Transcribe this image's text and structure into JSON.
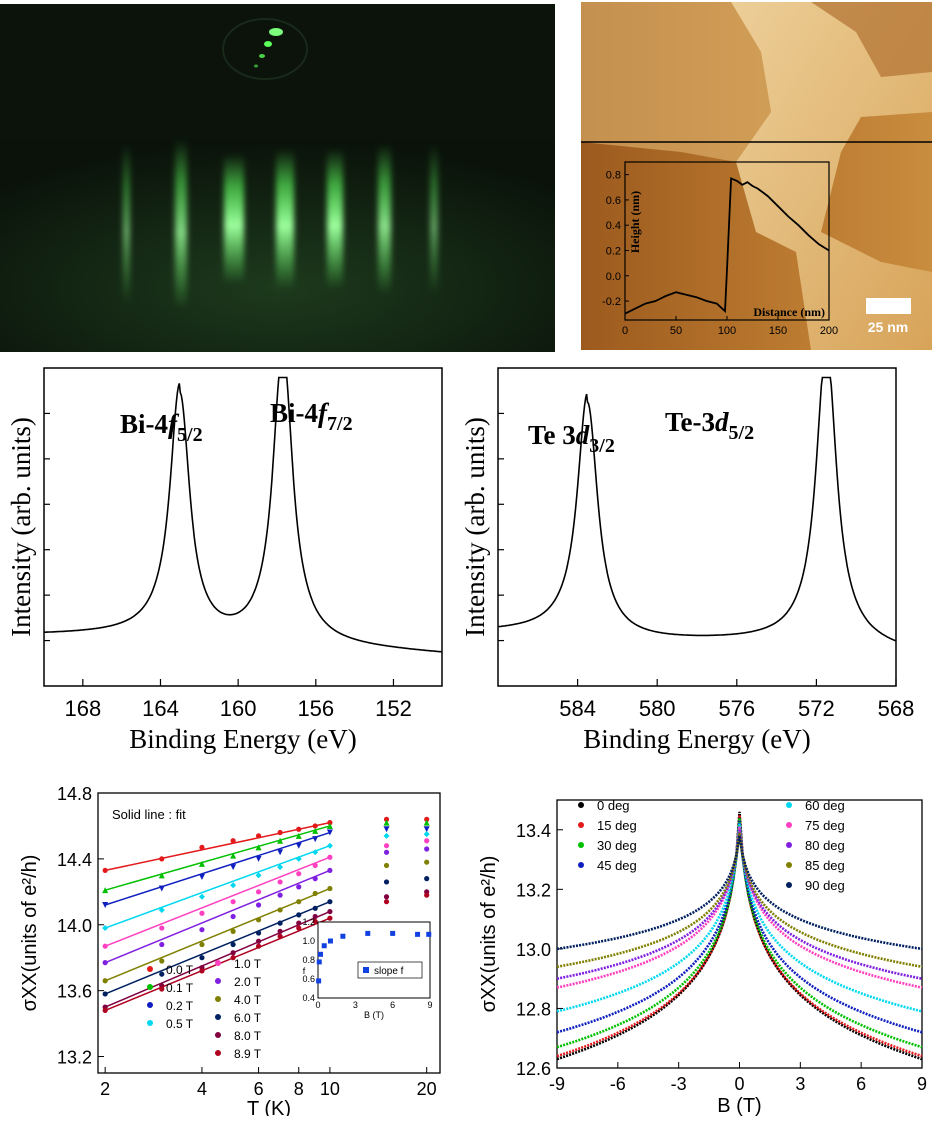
{
  "colors": {
    "rheed_bg": "#0c140c",
    "rheed_green": "#5dff5d",
    "afm_dark": "#8a4a14",
    "afm_light": "#e8c88a",
    "black": "#000000"
  },
  "afm": {
    "scale_bar_label": "25 nm",
    "inset": {
      "xlabel": "Distance (nm)",
      "ylabel": "Height (nm)",
      "x_ticks": [
        "0",
        "50",
        "100",
        "150",
        "200"
      ],
      "y_ticks": [
        "-0.2",
        "0.0",
        "0.2",
        "0.4",
        "0.6",
        "0.8"
      ]
    }
  },
  "chart_data": [
    {
      "id": "afm-profile",
      "type": "line",
      "xlabel": "Distance (nm)",
      "ylabel": "Height (nm)",
      "xlim": [
        0,
        200
      ],
      "ylim": [
        -0.35,
        0.9
      ],
      "x": [
        0,
        10,
        20,
        30,
        40,
        50,
        60,
        70,
        80,
        90,
        98,
        100,
        104,
        110,
        115,
        120,
        125,
        130,
        140,
        150,
        160,
        170,
        180,
        190,
        200
      ],
      "y": [
        -0.3,
        -0.26,
        -0.22,
        -0.2,
        -0.16,
        -0.13,
        -0.15,
        -0.17,
        -0.2,
        -0.22,
        -0.28,
        0.05,
        0.77,
        0.75,
        0.72,
        0.74,
        0.71,
        0.69,
        0.63,
        0.55,
        0.47,
        0.4,
        0.32,
        0.25,
        0.2
      ]
    },
    {
      "id": "xps-bi",
      "type": "line",
      "xlabel": "Binding Energy (eV)",
      "ylabel": "Intensity (arb. units)",
      "xlim": [
        170,
        149.5
      ],
      "x_ticks": [
        "168",
        "164",
        "160",
        "156",
        "152"
      ],
      "annotations": [
        {
          "text": "Bi-4",
          "italic": "f",
          "sub": "5/2"
        },
        {
          "text": "Bi-4",
          "italic": "f",
          "sub": "7/2"
        }
      ],
      "baseline": 0.13,
      "peaks": [
        {
          "x": 163.0,
          "height": 0.78
        },
        {
          "x": 157.7,
          "height": 0.92
        }
      ]
    },
    {
      "id": "xps-te",
      "type": "line",
      "xlabel": "Binding Energy (eV)",
      "ylabel": "Intensity (arb. units)",
      "xlim": [
        588,
        568
      ],
      "x_ticks": [
        "584",
        "580",
        "576",
        "572",
        "568"
      ],
      "annotations": [
        {
          "text": "Te 3",
          "italic": "d",
          "sub": "3/2"
        },
        {
          "text": "Te-3",
          "italic": "d",
          "sub": "5/2"
        }
      ],
      "baseline": 0.14,
      "peaks": [
        {
          "x": 583.5,
          "height": 0.75
        },
        {
          "x": 571.5,
          "height": 0.93
        }
      ]
    },
    {
      "id": "sigma-vs-T",
      "type": "scatter",
      "xlabel": "T (K)",
      "ylabel": "σXX(units of e²/h)",
      "xscale": "log",
      "xlim": [
        1.9,
        22
      ],
      "ylim": [
        13.1,
        14.8
      ],
      "x_ticks": [
        "2",
        "4",
        "6",
        "8",
        "10",
        "20"
      ],
      "y_ticks": [
        "13.2",
        "13.6",
        "14.0",
        "14.4",
        "14.8"
      ],
      "annotation": "Solid line : fit",
      "x": [
        2,
        3,
        4,
        5,
        6,
        7,
        8,
        9,
        10,
        15,
        20
      ],
      "series": [
        {
          "name": "0.0 T",
          "color": "#e31a1c",
          "values": [
            14.33,
            14.4,
            14.47,
            14.51,
            14.54,
            14.56,
            14.58,
            14.6,
            14.62,
            14.64,
            14.64
          ]
        },
        {
          "name": "0.1 T",
          "color": "#00c000",
          "values": [
            14.21,
            14.3,
            14.37,
            14.42,
            14.47,
            14.51,
            14.54,
            14.57,
            14.6,
            14.62,
            14.62
          ]
        },
        {
          "name": "0.2 T",
          "color": "#1020c0",
          "values": [
            14.12,
            14.22,
            14.29,
            14.35,
            14.4,
            14.44,
            14.48,
            14.52,
            14.56,
            14.58,
            14.58
          ]
        },
        {
          "name": "0.5 T",
          "color": "#00d8f0",
          "values": [
            13.98,
            14.09,
            14.17,
            14.24,
            14.3,
            14.35,
            14.4,
            14.44,
            14.48,
            14.54,
            14.55
          ]
        },
        {
          "name": "1.0 T",
          "color": "#ff40c0",
          "values": [
            13.87,
            13.98,
            14.07,
            14.14,
            14.2,
            14.26,
            14.31,
            14.36,
            14.41,
            14.48,
            14.51
          ]
        },
        {
          "name": "2.0 T",
          "color": "#8020e0",
          "values": [
            13.77,
            13.88,
            13.97,
            14.05,
            14.12,
            14.18,
            14.23,
            14.28,
            14.33,
            14.44,
            14.46
          ]
        },
        {
          "name": "4.0 T",
          "color": "#808000",
          "values": [
            13.66,
            13.78,
            13.88,
            13.96,
            14.03,
            14.09,
            14.14,
            14.19,
            14.22,
            14.36,
            14.38
          ]
        },
        {
          "name": "6.0 T",
          "color": "#002060",
          "values": [
            13.58,
            13.7,
            13.8,
            13.88,
            13.95,
            14.01,
            14.06,
            14.1,
            14.14,
            14.26,
            14.28
          ]
        },
        {
          "name": "8.0 T",
          "color": "#800040",
          "values": [
            13.5,
            13.63,
            13.74,
            13.83,
            13.9,
            13.96,
            14.01,
            14.05,
            14.08,
            14.17,
            14.2
          ]
        },
        {
          "name": "8.9 T",
          "color": "#b00020",
          "values": [
            13.48,
            13.61,
            13.72,
            13.8,
            13.87,
            13.93,
            13.98,
            14.02,
            14.04,
            14.14,
            14.18
          ]
        }
      ],
      "inset": {
        "type": "scatter",
        "xlabel": "B (T)",
        "ylabel": "f",
        "xlim": [
          0,
          9
        ],
        "ylim": [
          0.4,
          1.2
        ],
        "x_ticks": [
          "0",
          "3",
          "6",
          "9"
        ],
        "y_ticks": [
          "0.4",
          "0.6",
          "0.8",
          "1.0",
          "1.2"
        ],
        "legend": "slope f",
        "color": "#1040e0",
        "x": [
          0.05,
          0.1,
          0.2,
          0.5,
          1.0,
          2.0,
          4.0,
          6.0,
          8.0,
          8.9
        ],
        "values": [
          0.58,
          0.78,
          0.86,
          0.95,
          1.0,
          1.05,
          1.08,
          1.08,
          1.07,
          1.07
        ]
      }
    },
    {
      "id": "sigma-vs-B",
      "type": "scatter",
      "xlabel": "B (T)",
      "ylabel": "σXX(units of e²/h)",
      "xlim": [
        -9,
        9
      ],
      "ylim": [
        12.6,
        13.5
      ],
      "x_ticks": [
        "-9",
        "-6",
        "-3",
        "0",
        "3",
        "6",
        "9"
      ],
      "y_ticks": [
        "12.6",
        "12.8",
        "13.0",
        "13.2",
        "13.4"
      ],
      "series": [
        {
          "name": "0   deg",
          "color": "#000000",
          "peak": 13.46,
          "edge": 12.63
        },
        {
          "name": "15 deg",
          "color": "#e31a1c",
          "peak": 13.45,
          "edge": 12.64
        },
        {
          "name": "30 deg",
          "color": "#00c000",
          "peak": 13.44,
          "edge": 12.67
        },
        {
          "name": "45 deg",
          "color": "#1020c0",
          "peak": 13.43,
          "edge": 12.72
        },
        {
          "name": "60 deg",
          "color": "#00d8f0",
          "peak": 13.42,
          "edge": 12.79
        },
        {
          "name": "75 deg",
          "color": "#ff40c0",
          "peak": 13.41,
          "edge": 12.87
        },
        {
          "name": "80 deg",
          "color": "#8020e0",
          "peak": 13.4,
          "edge": 12.9
        },
        {
          "name": "85 deg",
          "color": "#808000",
          "peak": 13.39,
          "edge": 12.94
        },
        {
          "name": "90 deg",
          "color": "#002060",
          "peak": 13.38,
          "edge": 13.0
        }
      ]
    }
  ]
}
